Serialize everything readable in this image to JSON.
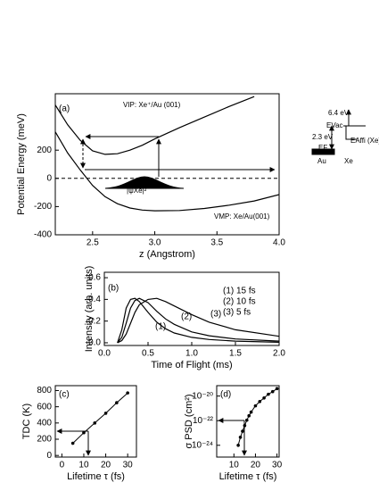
{
  "chart_data": [
    {
      "type": "line",
      "xlabel": "z (Angstrom)",
      "ylabel": "Potential Energy (meV)",
      "x": [
        2.2,
        2.3,
        2.4,
        2.5,
        2.6,
        2.7,
        2.8,
        2.9,
        3.0,
        3.2,
        3.4,
        3.6,
        3.8,
        4.0
      ],
      "series": [
        {
          "name": "VIP: Xe⁺/Au (001)",
          "color": "#000000",
          "values": [
            520,
            380,
            270,
            195,
            170,
            175,
            200,
            235,
            280,
            360,
            435,
            510,
            580,
            null
          ]
        },
        {
          "name": "VMP: Xe/Au(001)",
          "color": "#000000",
          "values": [
            330,
            180,
            60,
            -50,
            -130,
            -180,
            -210,
            -225,
            -230,
            -228,
            -213,
            -190,
            -160,
            -115
          ]
        }
      ],
      "xlim": [
        2.2,
        4.0
      ],
      "ylim": [
        -400,
        600
      ],
      "xticks": [
        2.5,
        {
          "value": 3.0,
          "label": "3.0"
        },
        3.5,
        {
          "value": 4.0,
          "label": "4.0"
        }
      ],
      "yticks": [
        -400,
        -200,
        0,
        200
      ],
      "zero_line": true,
      "legend": "inline",
      "annotations": [
        "(a)",
        "|ψXe|²",
        "EVac",
        "6.4 eV",
        "2.3 eV",
        "EF",
        "EAffi (Xe)",
        "Au",
        "Xe"
      ]
    },
    {
      "type": "line",
      "xlabel": "Time of Flight (ms)",
      "ylabel": "Intensity (arb. units)",
      "x": [
        0.15,
        0.2,
        0.25,
        0.3,
        0.35,
        0.4,
        0.5,
        0.6,
        0.7,
        0.8,
        1.0,
        1.2,
        1.5,
        2.0
      ],
      "series": [
        {
          "name": "(1) 15 fs",
          "color": "#000000",
          "values": [
            0,
            0.12,
            0.32,
            0.4,
            0.41,
            0.38,
            0.28,
            0.19,
            0.13,
            0.09,
            0.05,
            0.03,
            0.015,
            0.005
          ]
        },
        {
          "name": "(2) 10 fs",
          "color": "#000000",
          "values": [
            0,
            0.05,
            0.18,
            0.32,
            0.39,
            0.41,
            0.37,
            0.29,
            0.22,
            0.17,
            0.1,
            0.065,
            0.035,
            0.015
          ]
        },
        {
          "name": "(3) 5 fs",
          "color": "#000000",
          "values": [
            0,
            0.02,
            0.08,
            0.18,
            0.28,
            0.35,
            0.4,
            0.41,
            0.38,
            0.34,
            0.26,
            0.19,
            0.12,
            0.06
          ]
        }
      ],
      "xlim": [
        0,
        2.0
      ],
      "ylim": [
        -0.025,
        0.65
      ],
      "xticks": [
        {
          "value": 0,
          "label": "0.0"
        },
        0.5,
        {
          "value": 1.0,
          "label": "1.0"
        },
        1.5,
        {
          "value": 2.0,
          "label": "2.0"
        }
      ],
      "yticks": [
        {
          "value": 0,
          "label": "0.0"
        },
        0.2,
        0.4,
        0.6
      ],
      "legend": "upper right",
      "annotations": [
        "(b)",
        "(1)",
        "(2)",
        "(3)"
      ]
    },
    {
      "type": "scatter",
      "xlabel": "Lifetime τ (fs)",
      "ylabel": "TDC (K)",
      "x": [
        5,
        10,
        15,
        20,
        25,
        30
      ],
      "values": [
        150,
        280,
        400,
        520,
        650,
        770
      ],
      "color": "#000000",
      "xlim": [
        -3,
        34
      ],
      "ylim": [
        -20,
        860
      ],
      "xticks": [
        0,
        10,
        20,
        30
      ],
      "yticks": [
        0,
        200,
        400,
        600,
        800
      ],
      "annotations": [
        "(c)"
      ]
    },
    {
      "type": "scatter",
      "xlabel": "Lifetime τ (fs)",
      "ylabel": "σ PSD (cm²)",
      "x": [
        12,
        13,
        14,
        15,
        16,
        17,
        18,
        20,
        22,
        24,
        26,
        28,
        30
      ],
      "values": [
        1e-24,
        4.5e-24,
        1.4e-23,
        4e-23,
        1.1e-22,
        2.5e-22,
        5e-22,
        1.6e-21,
        3.6e-21,
        7e-21,
        1.4e-20,
        2.3e-20,
        4e-20
      ],
      "color": "#000000",
      "log_y": true,
      "xlim": [
        2,
        31
      ],
      "ylim": [
        1.1e-25,
        7e-20
      ],
      "xticks": [
        10,
        20,
        30
      ],
      "yticks": [
        {
          "value": 1e-24,
          "label": "10⁻²⁴"
        },
        {
          "value": 1e-22,
          "label": "10⁻²²"
        },
        {
          "value": 1e-20,
          "label": "10⁻²⁰"
        }
      ],
      "annotations": [
        "(d)"
      ]
    }
  ]
}
